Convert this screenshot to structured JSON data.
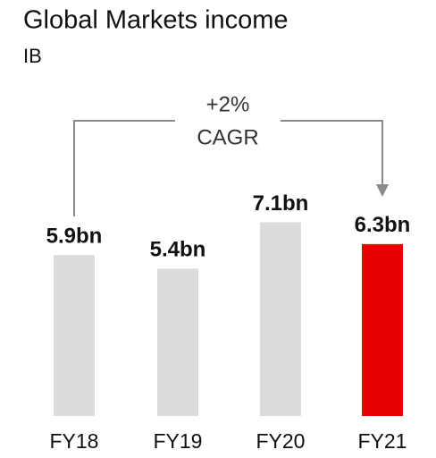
{
  "chart_data": {
    "type": "bar",
    "title": "Global Markets income",
    "subtitle": "IB",
    "categories": [
      "FY18",
      "FY19",
      "FY20",
      "FY21"
    ],
    "values": [
      5.9,
      5.4,
      7.1,
      6.3
    ],
    "value_labels": [
      "5.9bn",
      "5.4bn",
      "7.1bn",
      "6.3bn"
    ],
    "colors": [
      "#dcdcdc",
      "#dcdcdc",
      "#dcdcdc",
      "#e60000"
    ],
    "annotations": [
      "+2%",
      "CAGR"
    ]
  }
}
